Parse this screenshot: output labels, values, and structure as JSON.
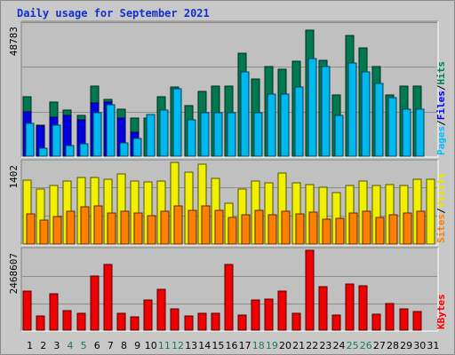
{
  "title": "Daily usage for September 2021",
  "chart_data": [
    {
      "type": "bar",
      "panel": "hits-files-pages",
      "categories": [
        "1",
        "2",
        "3",
        "4",
        "5",
        "6",
        "7",
        "8",
        "9",
        "10",
        "11",
        "12",
        "13",
        "14",
        "15",
        "16",
        "17",
        "18",
        "19",
        "20",
        "21",
        "22",
        "23",
        "24",
        "25",
        "26",
        "27",
        "28",
        "29",
        "30",
        "31"
      ],
      "weekend_days": [
        "4",
        "5",
        "11",
        "12",
        "18",
        "19",
        "25",
        "26"
      ],
      "ymax_label": "48783",
      "ylim": [
        0,
        48783
      ],
      "legend": [
        "Pages",
        "/",
        "Files",
        "/",
        "Hits"
      ],
      "legend_colors": [
        "#00c0ff",
        "#000000",
        "#0000ff",
        "#000000",
        "#00805c"
      ],
      "grid": true,
      "series": [
        {
          "name": "Hits",
          "color": "#007850",
          "values": [
            22000,
            11500,
            20000,
            17000,
            15000,
            26000,
            21000,
            17500,
            14000,
            14000,
            22000,
            25500,
            18500,
            24000,
            26000,
            26000,
            38000,
            28500,
            33000,
            32000,
            35000,
            46500,
            35500,
            22500,
            44500,
            40000,
            33000,
            22500,
            26000,
            26000,
            0
          ]
        },
        {
          "name": "Files",
          "color": "#0000e0",
          "values": [
            16500,
            11000,
            14500,
            15000,
            13500,
            19500,
            20000,
            14000,
            9000,
            0,
            0,
            0,
            0,
            0,
            0,
            0,
            0,
            0,
            0,
            0,
            0,
            0,
            0,
            0,
            0,
            0,
            0,
            0,
            0,
            0,
            0
          ]
        },
        {
          "name": "Pages",
          "color": "#00b8f0",
          "values": [
            12000,
            3000,
            11500,
            4000,
            4500,
            16000,
            19000,
            5000,
            6500,
            15500,
            17000,
            25000,
            13500,
            16000,
            16000,
            16000,
            31000,
            16000,
            23000,
            23000,
            25500,
            36000,
            33000,
            15000,
            34500,
            31000,
            27000,
            21500,
            17500,
            17500,
            0
          ]
        }
      ]
    },
    {
      "type": "bar",
      "panel": "visits-sites",
      "ymax_label": "1402",
      "ylim": [
        0,
        1402
      ],
      "legend": [
        "Sites",
        "/",
        "Visits"
      ],
      "legend_colors": [
        "#ff8000",
        "#000000",
        "#e8e800"
      ],
      "grid": true,
      "series": [
        {
          "name": "Visits",
          "color": "#f0f000",
          "values": [
            1100,
            940,
            1000,
            1080,
            1140,
            1140,
            1120,
            1200,
            1080,
            1060,
            1080,
            1400,
            1230,
            1370,
            1130,
            700,
            940,
            1080,
            1050,
            1220,
            1050,
            1020,
            980,
            890,
            1000,
            1080,
            1010,
            1020,
            1010,
            1120,
            1110
          ]
        },
        {
          "name": "Sites",
          "color": "#ff8000",
          "values": [
            520,
            410,
            480,
            570,
            640,
            650,
            540,
            570,
            540,
            490,
            560,
            660,
            580,
            650,
            580,
            450,
            500,
            580,
            500,
            570,
            520,
            550,
            430,
            440,
            540,
            560,
            460,
            500,
            530,
            560,
            0
          ]
        }
      ]
    },
    {
      "type": "bar",
      "panel": "kbytes",
      "ymax_label": "2468607",
      "ylim": [
        0,
        2468607
      ],
      "legend": [
        "KBytes"
      ],
      "legend_colors": [
        "#ff0000"
      ],
      "grid": true,
      "series": [
        {
          "name": "KBytes",
          "color": "#f00000",
          "values": [
            1200000,
            430000,
            1120000,
            590000,
            520000,
            1680000,
            2040000,
            520000,
            420000,
            940000,
            1250000,
            660000,
            430000,
            510000,
            530000,
            2040000,
            470000,
            920000,
            950000,
            1220000,
            510000,
            2468607,
            1350000,
            480000,
            1430000,
            1380000,
            500000,
            810000,
            660000,
            570000,
            0
          ]
        }
      ]
    }
  ]
}
